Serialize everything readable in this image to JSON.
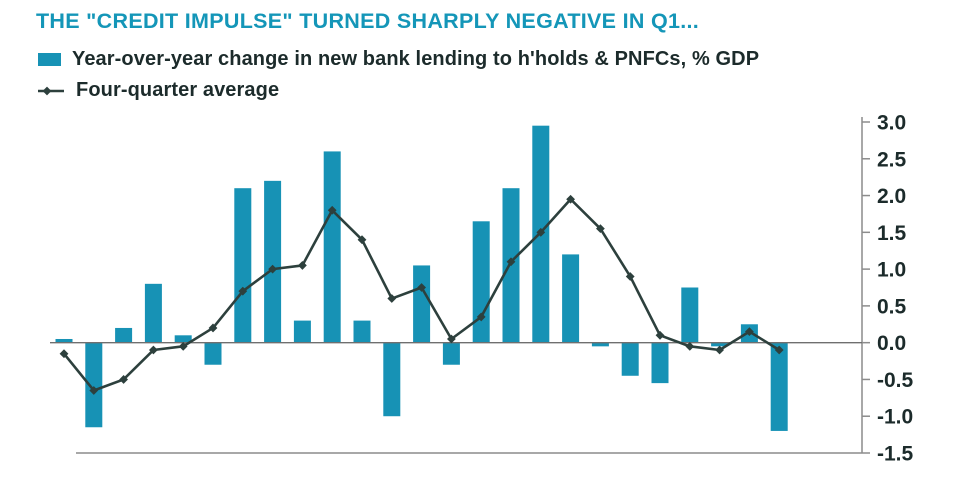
{
  "title": "THE \"CREDIT IMPULSE\" TURNED SHARPLY NEGATIVE IN Q1...",
  "legend": {
    "bar_label": "Year-over-year change in new bank lending to h'holds & PNFCs, % GDP",
    "line_label": "Four-quarter average"
  },
  "colors": {
    "bar": "#1792b5",
    "line": "#2d403d",
    "title": "#1496b8",
    "text": "#1c2b2b",
    "axis": "#8c8c8c",
    "zero_line": "#6f6f6f"
  },
  "chart_data": {
    "type": "bar",
    "title": "THE \"CREDIT IMPULSE\" TURNED SHARPLY NEGATIVE IN Q1...",
    "x": [
      1,
      2,
      3,
      4,
      5,
      6,
      7,
      8,
      9,
      10,
      11,
      12,
      13,
      14,
      15,
      16,
      17,
      18,
      19,
      20,
      21,
      22,
      23,
      24,
      25
    ],
    "series": [
      {
        "name": "Year-over-year change in new bank lending to h'holds & PNFCs, % GDP",
        "type": "bar",
        "values": [
          0.05,
          -1.15,
          0.2,
          0.8,
          0.1,
          -0.3,
          2.1,
          2.2,
          0.3,
          2.6,
          0.3,
          -1.0,
          1.05,
          -0.3,
          1.65,
          2.1,
          2.95,
          1.2,
          -0.05,
          -0.45,
          -0.55,
          0.75,
          -0.05,
          0.25,
          -1.2
        ]
      },
      {
        "name": "Four-quarter average",
        "type": "line",
        "values": [
          -0.15,
          -0.65,
          -0.5,
          -0.1,
          -0.05,
          0.2,
          0.7,
          1.0,
          1.05,
          1.8,
          1.4,
          0.6,
          0.75,
          0.05,
          0.35,
          1.1,
          1.5,
          1.95,
          1.55,
          0.9,
          0.1,
          -0.05,
          -0.1,
          0.15,
          -0.1
        ]
      }
    ],
    "xlabel": "",
    "ylabel": "% GDP",
    "ylim": [
      -1.5,
      3.0
    ],
    "yticks": [
      "3.0",
      "2.5",
      "2.0",
      "1.5",
      "1.0",
      "0.5",
      "0.0",
      "-0.5",
      "-1.0",
      "-1.5"
    ],
    "y_axis_side": "right",
    "grid": false,
    "legend_position": "top-left"
  }
}
